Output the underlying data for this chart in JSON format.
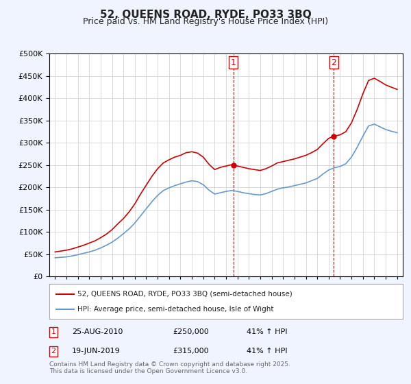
{
  "title1": "52, QUEENS ROAD, RYDE, PO33 3BQ",
  "title2": "Price paid vs. HM Land Registry's House Price Index (HPI)",
  "legend1": "52, QUEENS ROAD, RYDE, PO33 3BQ (semi-detached house)",
  "legend2": "HPI: Average price, semi-detached house, Isle of Wight",
  "red_color": "#cc0000",
  "blue_color": "#6699cc",
  "vline_color": "#cc0000",
  "marker1_date_x": 2010.65,
  "marker2_date_x": 2019.46,
  "marker1_label": "1",
  "marker2_label": "2",
  "annotation1": "25-AUG-2010    £250,000    41% ↑ HPI",
  "annotation2": "19-JUN-2019    £315,000    41% ↑ HPI",
  "footer": "Contains HM Land Registry data © Crown copyright and database right 2025.\nThis data is licensed under the Open Government Licence v3.0.",
  "ylim": [
    0,
    500000
  ],
  "xlim_start": 1994.5,
  "xlim_end": 2025.5,
  "background_color": "#f0f4ff",
  "plot_bg": "#ffffff",
  "grid_color": "#cccccc"
}
